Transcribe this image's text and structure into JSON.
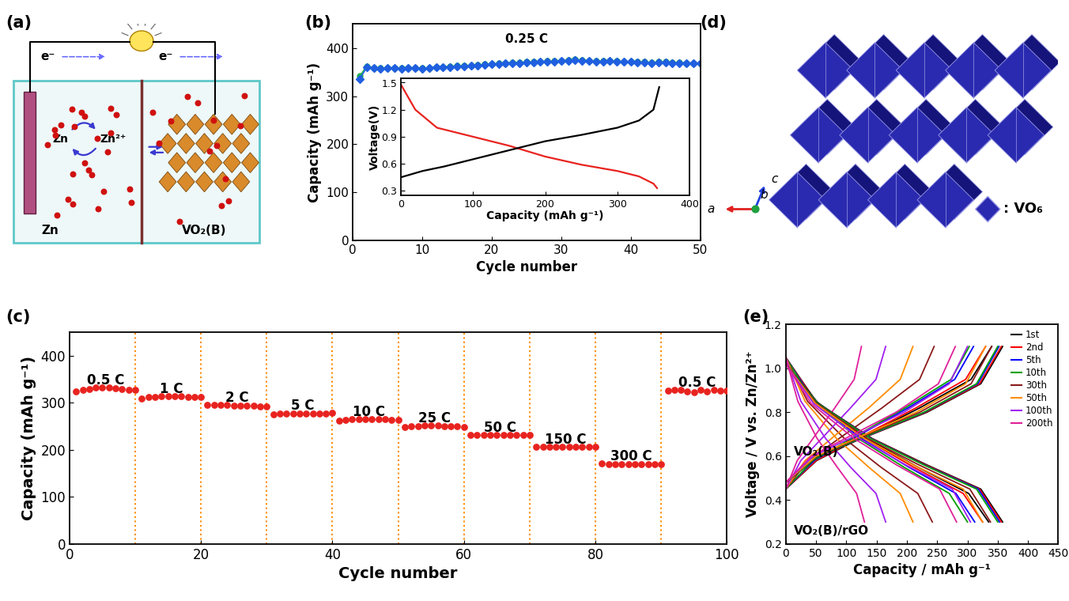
{
  "chart_data": [
    {
      "type": "line",
      "panel": "(b)",
      "annotation": "0.25 C",
      "x_label": "Cycle number",
      "y_label": "Capacity (mAh g⁻¹)",
      "x": [
        1,
        2,
        3,
        4,
        5,
        6,
        7,
        8,
        9,
        10,
        11,
        12,
        13,
        14,
        15,
        16,
        17,
        18,
        19,
        20,
        21,
        22,
        23,
        24,
        25,
        26,
        27,
        28,
        29,
        30,
        31,
        32,
        33,
        34,
        35,
        36,
        37,
        38,
        39,
        40,
        41,
        42,
        43,
        44,
        45,
        46,
        47,
        48,
        49,
        50
      ],
      "series": [
        {
          "color": "#22b14c",
          "marker": "o",
          "values": [
            342,
            362,
            359,
            358,
            359,
            359,
            358,
            359,
            359,
            358,
            359,
            361,
            361,
            362,
            363,
            363,
            364,
            365,
            366,
            367,
            368,
            369,
            370,
            370,
            371,
            371,
            372,
            373,
            373,
            374,
            375,
            376,
            375,
            374,
            373,
            373,
            374,
            373,
            372,
            372,
            371,
            371,
            370,
            371,
            371,
            370,
            370,
            369,
            369,
            369
          ]
        },
        {
          "color": "#1f5fe0",
          "marker": "D",
          "values": [
            335,
            360,
            358,
            357,
            358,
            358,
            357,
            358,
            358,
            357,
            358,
            360,
            360,
            361,
            362,
            362,
            363,
            364,
            365,
            366,
            367,
            368,
            369,
            369,
            370,
            370,
            371,
            372,
            372,
            373,
            374,
            375,
            374,
            373,
            372,
            372,
            373,
            372,
            371,
            371,
            370,
            370,
            369,
            370,
            370,
            369,
            369,
            368,
            368,
            368
          ]
        }
      ],
      "xlim": [
        0,
        50
      ],
      "xticks": [
        0,
        10,
        20,
        30,
        40,
        50
      ],
      "ylim": [
        0,
        450
      ],
      "yticks": [
        0,
        100,
        200,
        300,
        400
      ]
    },
    {
      "type": "line",
      "x_label": "Capacity (mAh g⁻¹)",
      "y_label": "Voltage(V)",
      "series": [
        {
          "color": "#e8231f",
          "x": [
            0,
            20,
            50,
            100,
            150,
            200,
            250,
            300,
            330,
            350,
            355
          ],
          "values": [
            1.48,
            1.2,
            1.0,
            0.9,
            0.8,
            0.68,
            0.59,
            0.52,
            0.46,
            0.38,
            0.33
          ]
        },
        {
          "color": "#000000",
          "x": [
            0,
            30,
            60,
            100,
            150,
            200,
            250,
            300,
            330,
            350,
            358
          ],
          "values": [
            0.45,
            0.52,
            0.57,
            0.65,
            0.75,
            0.85,
            0.92,
            1.0,
            1.08,
            1.2,
            1.45
          ]
        }
      ],
      "xlim": [
        0,
        400
      ],
      "xticks": [
        0,
        100,
        200,
        300,
        400
      ],
      "ylim": [
        0.25,
        1.55
      ],
      "yticks": [
        0.3,
        0.6,
        0.9,
        1.2,
        1.5
      ]
    },
    {
      "type": "scatter",
      "panel": "(c)",
      "x_label": "Cycle number",
      "y_label": "Capacity (mAh g⁻¹)",
      "color": "#e8231f",
      "marker": "o",
      "x": [
        1,
        2,
        3,
        4,
        5,
        6,
        7,
        8,
        9,
        10,
        11,
        12,
        13,
        14,
        15,
        16,
        17,
        18,
        19,
        20,
        21,
        22,
        23,
        24,
        25,
        26,
        27,
        28,
        29,
        30,
        31,
        32,
        33,
        34,
        35,
        36,
        37,
        38,
        39,
        40,
        41,
        42,
        43,
        44,
        45,
        46,
        47,
        48,
        49,
        50,
        51,
        52,
        53,
        54,
        55,
        56,
        57,
        58,
        59,
        60,
        61,
        62,
        63,
        64,
        65,
        66,
        67,
        68,
        69,
        70,
        71,
        72,
        73,
        74,
        75,
        76,
        77,
        78,
        79,
        80,
        81,
        82,
        83,
        84,
        85,
        86,
        87,
        88,
        89,
        90,
        91,
        92,
        93,
        94,
        95,
        96,
        97,
        98,
        99,
        100
      ],
      "values": [
        325,
        328,
        330,
        332,
        332,
        333,
        331,
        330,
        328,
        327,
        310,
        312,
        313,
        314,
        314,
        314,
        314,
        313,
        313,
        313,
        296,
        295,
        295,
        295,
        294,
        294,
        294,
        294,
        293,
        293,
        275,
        277,
        278,
        278,
        278,
        278,
        278,
        278,
        278,
        279,
        262,
        264,
        265,
        265,
        265,
        265,
        265,
        265,
        264,
        264,
        248,
        250,
        251,
        252,
        252,
        252,
        251,
        251,
        250,
        249,
        232,
        232,
        232,
        232,
        232,
        232,
        232,
        232,
        232,
        232,
        207,
        207,
        207,
        207,
        207,
        207,
        207,
        207,
        207,
        207,
        172,
        170,
        170,
        170,
        170,
        170,
        170,
        170,
        170,
        170,
        326,
        328,
        327,
        325,
        323,
        328,
        324,
        327,
        326,
        326
      ],
      "segment_labels": [
        "0.5 C",
        "1 C",
        "2 C",
        "5 C",
        "10 C",
        "25 C",
        "50 C",
        "150 C",
        "300 C",
        "0.5 C"
      ],
      "dividers": [
        10,
        20,
        30,
        40,
        50,
        60,
        70,
        80,
        90
      ],
      "xlim": [
        0,
        100
      ],
      "xticks": [
        0,
        20,
        40,
        60,
        80,
        100
      ],
      "ylim": [
        0,
        450
      ],
      "yticks": [
        0,
        100,
        200,
        300,
        400
      ]
    },
    {
      "type": "line",
      "panel": "(e)",
      "x_label": "Capacity / mAh g⁻¹",
      "y_label": "Voltage / V vs. Zn/Zn²⁺",
      "legend": "upper right",
      "groups": [
        {
          "label": "VO₂(B)",
          "discharge_v": [
            1.05,
            0.85,
            0.68,
            0.55,
            0.43,
            0.3
          ],
          "charge_v": [
            0.45,
            0.58,
            0.7,
            0.82,
            0.95,
            1.1
          ],
          "curves": [
            {
              "name": "1st",
              "color": "#000000",
              "discharge": [
                0,
                50,
                134,
                218,
                302,
                335
              ],
              "charge": [
                0,
                51,
                136,
                221,
                306,
                340
              ]
            },
            {
              "name": "2nd",
              "color": "#ff0000",
              "discharge": [
                0,
                49,
                130,
                211,
                293,
                325
              ],
              "charge": [
                0,
                50,
                132,
                215,
                297,
                330
              ]
            },
            {
              "name": "5th",
              "color": "#0000ff",
              "discharge": [
                0,
                47,
                125,
                203,
                281,
                312
              ],
              "charge": [
                0,
                47,
                124,
                202,
                279,
                310
              ]
            },
            {
              "name": "10th",
              "color": "#00a000",
              "discharge": [
                0,
                45,
                120,
                195,
                270,
                300
              ],
              "charge": [
                0,
                45,
                121,
                197,
                273,
                303
              ]
            },
            {
              "name": "30th",
              "color": "#8b1a1a",
              "discharge": [
                0,
                36,
                97,
                157,
                218,
                242
              ],
              "charge": [
                0,
                37,
                98,
                159,
                221,
                245
              ]
            },
            {
              "name": "50th",
              "color": "#ff8c00",
              "discharge": [
                0,
                32,
                84,
                137,
                189,
                210
              ],
              "charge": [
                0,
                32,
                84,
                137,
                189,
                210
              ]
            },
            {
              "name": "100th",
              "color": "#a020f0",
              "discharge": [
                0,
                25,
                66,
                107,
                149,
                165
              ],
              "charge": [
                0,
                25,
                66,
                107,
                149,
                165
              ]
            },
            {
              "name": "200th",
              "color": "#e0209a",
              "discharge": [
                0,
                20,
                52,
                85,
                117,
                130
              ],
              "charge": [
                0,
                19,
                50,
                81,
                113,
                125
              ]
            }
          ]
        },
        {
          "label": "VO₂(B)/rGO",
          "discharge_v": [
            1.02,
            0.84,
            0.68,
            0.56,
            0.45,
            0.3
          ],
          "charge_v": [
            0.48,
            0.6,
            0.7,
            0.8,
            0.93,
            1.1
          ],
          "curves": [
            {
              "name": "1st",
              "color": "#000000",
              "discharge": [
                0,
                54,
                143,
                233,
                322,
                358
              ],
              "charge": [
                0,
                54,
                143,
                233,
                322,
                358
              ]
            },
            {
              "name": "2nd",
              "color": "#ff0000",
              "discharge": [
                0,
                53,
                142,
                231,
                320,
                356
              ],
              "charge": [
                0,
                53,
                142,
                231,
                320,
                356
              ]
            },
            {
              "name": "5th",
              "color": "#0000ff",
              "discharge": [
                0,
                53,
                141,
                229,
                318,
                353
              ],
              "charge": [
                0,
                53,
                141,
                229,
                317,
                352
              ]
            },
            {
              "name": "10th",
              "color": "#00a000",
              "discharge": [
                0,
                53,
                140,
                228,
                315,
                350
              ],
              "charge": [
                0,
                53,
                140,
                228,
                315,
                350
              ]
            },
            {
              "name": "30th",
              "color": "#8b1a1a",
              "discharge": [
                0,
                51,
                135,
                220,
                304,
                338
              ],
              "charge": [
                0,
                51,
                136,
                221,
                306,
                340
              ]
            },
            {
              "name": "50th",
              "color": "#ff8c00",
              "discharge": [
                0,
                49,
                130,
                211,
                293,
                325
              ],
              "charge": [
                0,
                50,
                132,
                215,
                297,
                330
              ]
            },
            {
              "name": "100th",
              "color": "#a020f0",
              "discharge": [
                0,
                46,
                122,
                198,
                275,
                305
              ],
              "charge": [
                0,
                45,
                120,
                195,
                270,
                300
              ]
            },
            {
              "name": "200th",
              "color": "#e0209a",
              "discharge": [
                0,
                42,
                113,
                183,
                254,
                282
              ],
              "charge": [
                0,
                42,
                112,
                182,
                252,
                280
              ]
            }
          ]
        }
      ],
      "xlim": [
        0,
        450
      ],
      "xticks": [
        0,
        50,
        100,
        150,
        200,
        250,
        300,
        350,
        400,
        450
      ],
      "ylim": [
        0.2,
        1.2
      ],
      "yticks": [
        0.2,
        0.4,
        0.6,
        0.8,
        1.0,
        1.2
      ]
    }
  ],
  "diagrams": {
    "a": {
      "panel": "(a)",
      "electron": "e⁻",
      "anode_label": "Zn",
      "cathode_label": "VO₂(B)",
      "redox": [
        "Zn",
        "Zn²⁺"
      ]
    },
    "d": {
      "panel": "(d)",
      "axes_labels": [
        "a",
        "b",
        "c"
      ],
      "legend_label": ": VO₆"
    }
  }
}
